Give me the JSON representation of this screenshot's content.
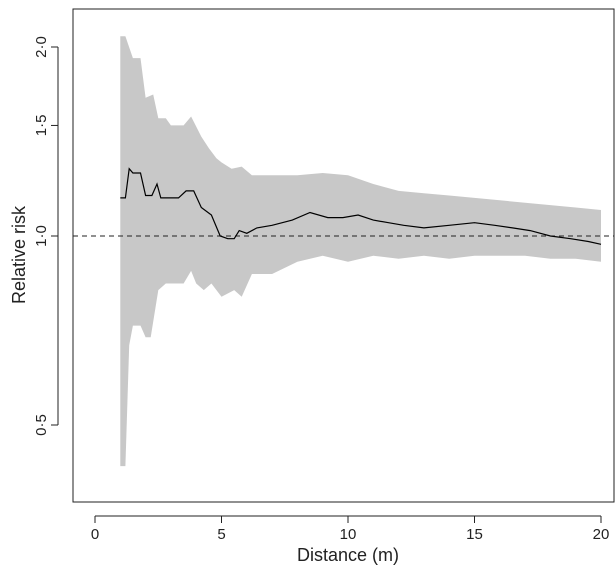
{
  "chart_data": {
    "type": "area",
    "title": "",
    "xlabel": "Distance (m)",
    "ylabel": "Relative risk",
    "xlim": [
      0,
      20
    ],
    "ylim": [
      0.42,
      2.1
    ],
    "y_scale": "log",
    "grid": false,
    "legend": "none",
    "x_ticks": [
      0,
      5,
      10,
      15,
      20
    ],
    "x_tick_labels": [
      "0",
      "5",
      "10",
      "15",
      "20"
    ],
    "y_ticks": [
      0.5,
      1.0,
      1.5,
      2.0
    ],
    "y_tick_labels": [
      "0·5",
      "1·0",
      "1·5",
      "2·0"
    ],
    "reference_line": {
      "y": 1.0,
      "style": "dashed"
    },
    "colors": {
      "band": "#c8c8c8",
      "line": "#000000",
      "axis": "#222222"
    },
    "series": [
      {
        "role": "estimate",
        "x": [
          1.0,
          1.2,
          1.35,
          1.5,
          1.8,
          2.0,
          2.25,
          2.45,
          2.6,
          2.9,
          3.3,
          3.6,
          3.9,
          4.2,
          4.6,
          4.95,
          5.25,
          5.5,
          5.7,
          6.0,
          6.4,
          7.0,
          7.8,
          8.5,
          9.2,
          9.8,
          10.4,
          11.0,
          11.6,
          12.2,
          13.0,
          14.0,
          15.0,
          15.8,
          16.5,
          17.2,
          18.0,
          18.8,
          19.5,
          20.0
        ],
        "y": [
          1.15,
          1.15,
          1.28,
          1.26,
          1.26,
          1.16,
          1.16,
          1.21,
          1.15,
          1.15,
          1.15,
          1.18,
          1.18,
          1.11,
          1.08,
          1.0,
          0.99,
          0.99,
          1.02,
          1.01,
          1.03,
          1.04,
          1.06,
          1.09,
          1.07,
          1.07,
          1.08,
          1.06,
          1.05,
          1.04,
          1.03,
          1.04,
          1.05,
          1.04,
          1.03,
          1.02,
          1.0,
          0.99,
          0.98,
          0.97
        ]
      },
      {
        "role": "ci_upper",
        "x": [
          1.0,
          1.2,
          1.5,
          1.8,
          2.0,
          2.3,
          2.5,
          2.8,
          3.0,
          3.5,
          3.8,
          4.2,
          4.5,
          4.8,
          5.0,
          5.4,
          5.8,
          6.2,
          7.0,
          8.0,
          9.0,
          10.0,
          11.0,
          12.0,
          13.0,
          14.0,
          15.0,
          16.0,
          17.0,
          18.0,
          19.0,
          20.0
        ],
        "y": [
          2.08,
          2.08,
          1.92,
          1.92,
          1.66,
          1.68,
          1.54,
          1.54,
          1.5,
          1.5,
          1.55,
          1.44,
          1.38,
          1.33,
          1.31,
          1.28,
          1.29,
          1.25,
          1.25,
          1.25,
          1.26,
          1.25,
          1.21,
          1.18,
          1.17,
          1.16,
          1.15,
          1.14,
          1.13,
          1.12,
          1.11,
          1.1
        ]
      },
      {
        "role": "ci_lower",
        "x": [
          1.0,
          1.2,
          1.35,
          1.5,
          1.8,
          2.0,
          2.2,
          2.5,
          2.8,
          3.0,
          3.5,
          3.8,
          4.0,
          4.3,
          4.6,
          5.0,
          5.5,
          5.8,
          6.2,
          7.0,
          8.0,
          9.0,
          10.0,
          11.0,
          12.0,
          13.0,
          14.0,
          15.0,
          16.0,
          17.0,
          18.0,
          19.0,
          20.0
        ],
        "y": [
          0.43,
          0.43,
          0.67,
          0.72,
          0.72,
          0.69,
          0.69,
          0.82,
          0.84,
          0.84,
          0.84,
          0.88,
          0.84,
          0.82,
          0.84,
          0.8,
          0.82,
          0.8,
          0.87,
          0.87,
          0.91,
          0.93,
          0.91,
          0.93,
          0.92,
          0.93,
          0.92,
          0.93,
          0.93,
          0.93,
          0.92,
          0.92,
          0.91
        ]
      }
    ]
  }
}
